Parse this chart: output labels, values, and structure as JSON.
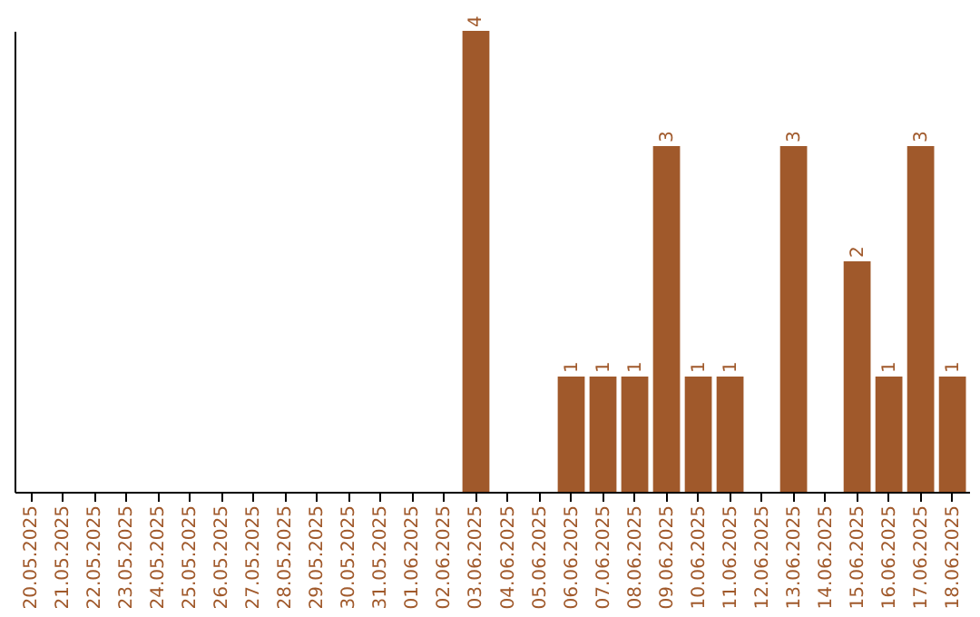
{
  "chart_data": {
    "type": "bar",
    "categories": [
      "20.05.2025",
      "21.05.2025",
      "22.05.2025",
      "23.05.2025",
      "24.05.2025",
      "25.05.2025",
      "26.05.2025",
      "27.05.2025",
      "28.05.2025",
      "29.05.2025",
      "30.05.2025",
      "31.05.2025",
      "01.06.2025",
      "02.06.2025",
      "03.06.2025",
      "04.06.2025",
      "05.06.2025",
      "06.06.2025",
      "07.06.2025",
      "08.06.2025",
      "09.06.2025",
      "10.06.2025",
      "11.06.2025",
      "12.06.2025",
      "13.06.2025",
      "14.06.2025",
      "15.06.2025",
      "16.06.2025",
      "17.06.2025",
      "18.06.2025"
    ],
    "values": [
      null,
      null,
      null,
      null,
      null,
      null,
      null,
      null,
      null,
      null,
      null,
      null,
      null,
      null,
      4,
      null,
      null,
      1,
      1,
      1,
      3,
      1,
      1,
      null,
      3,
      null,
      2,
      1,
      3,
      1
    ],
    "data_labels": true,
    "color": "#a0592b",
    "grid": false
  }
}
